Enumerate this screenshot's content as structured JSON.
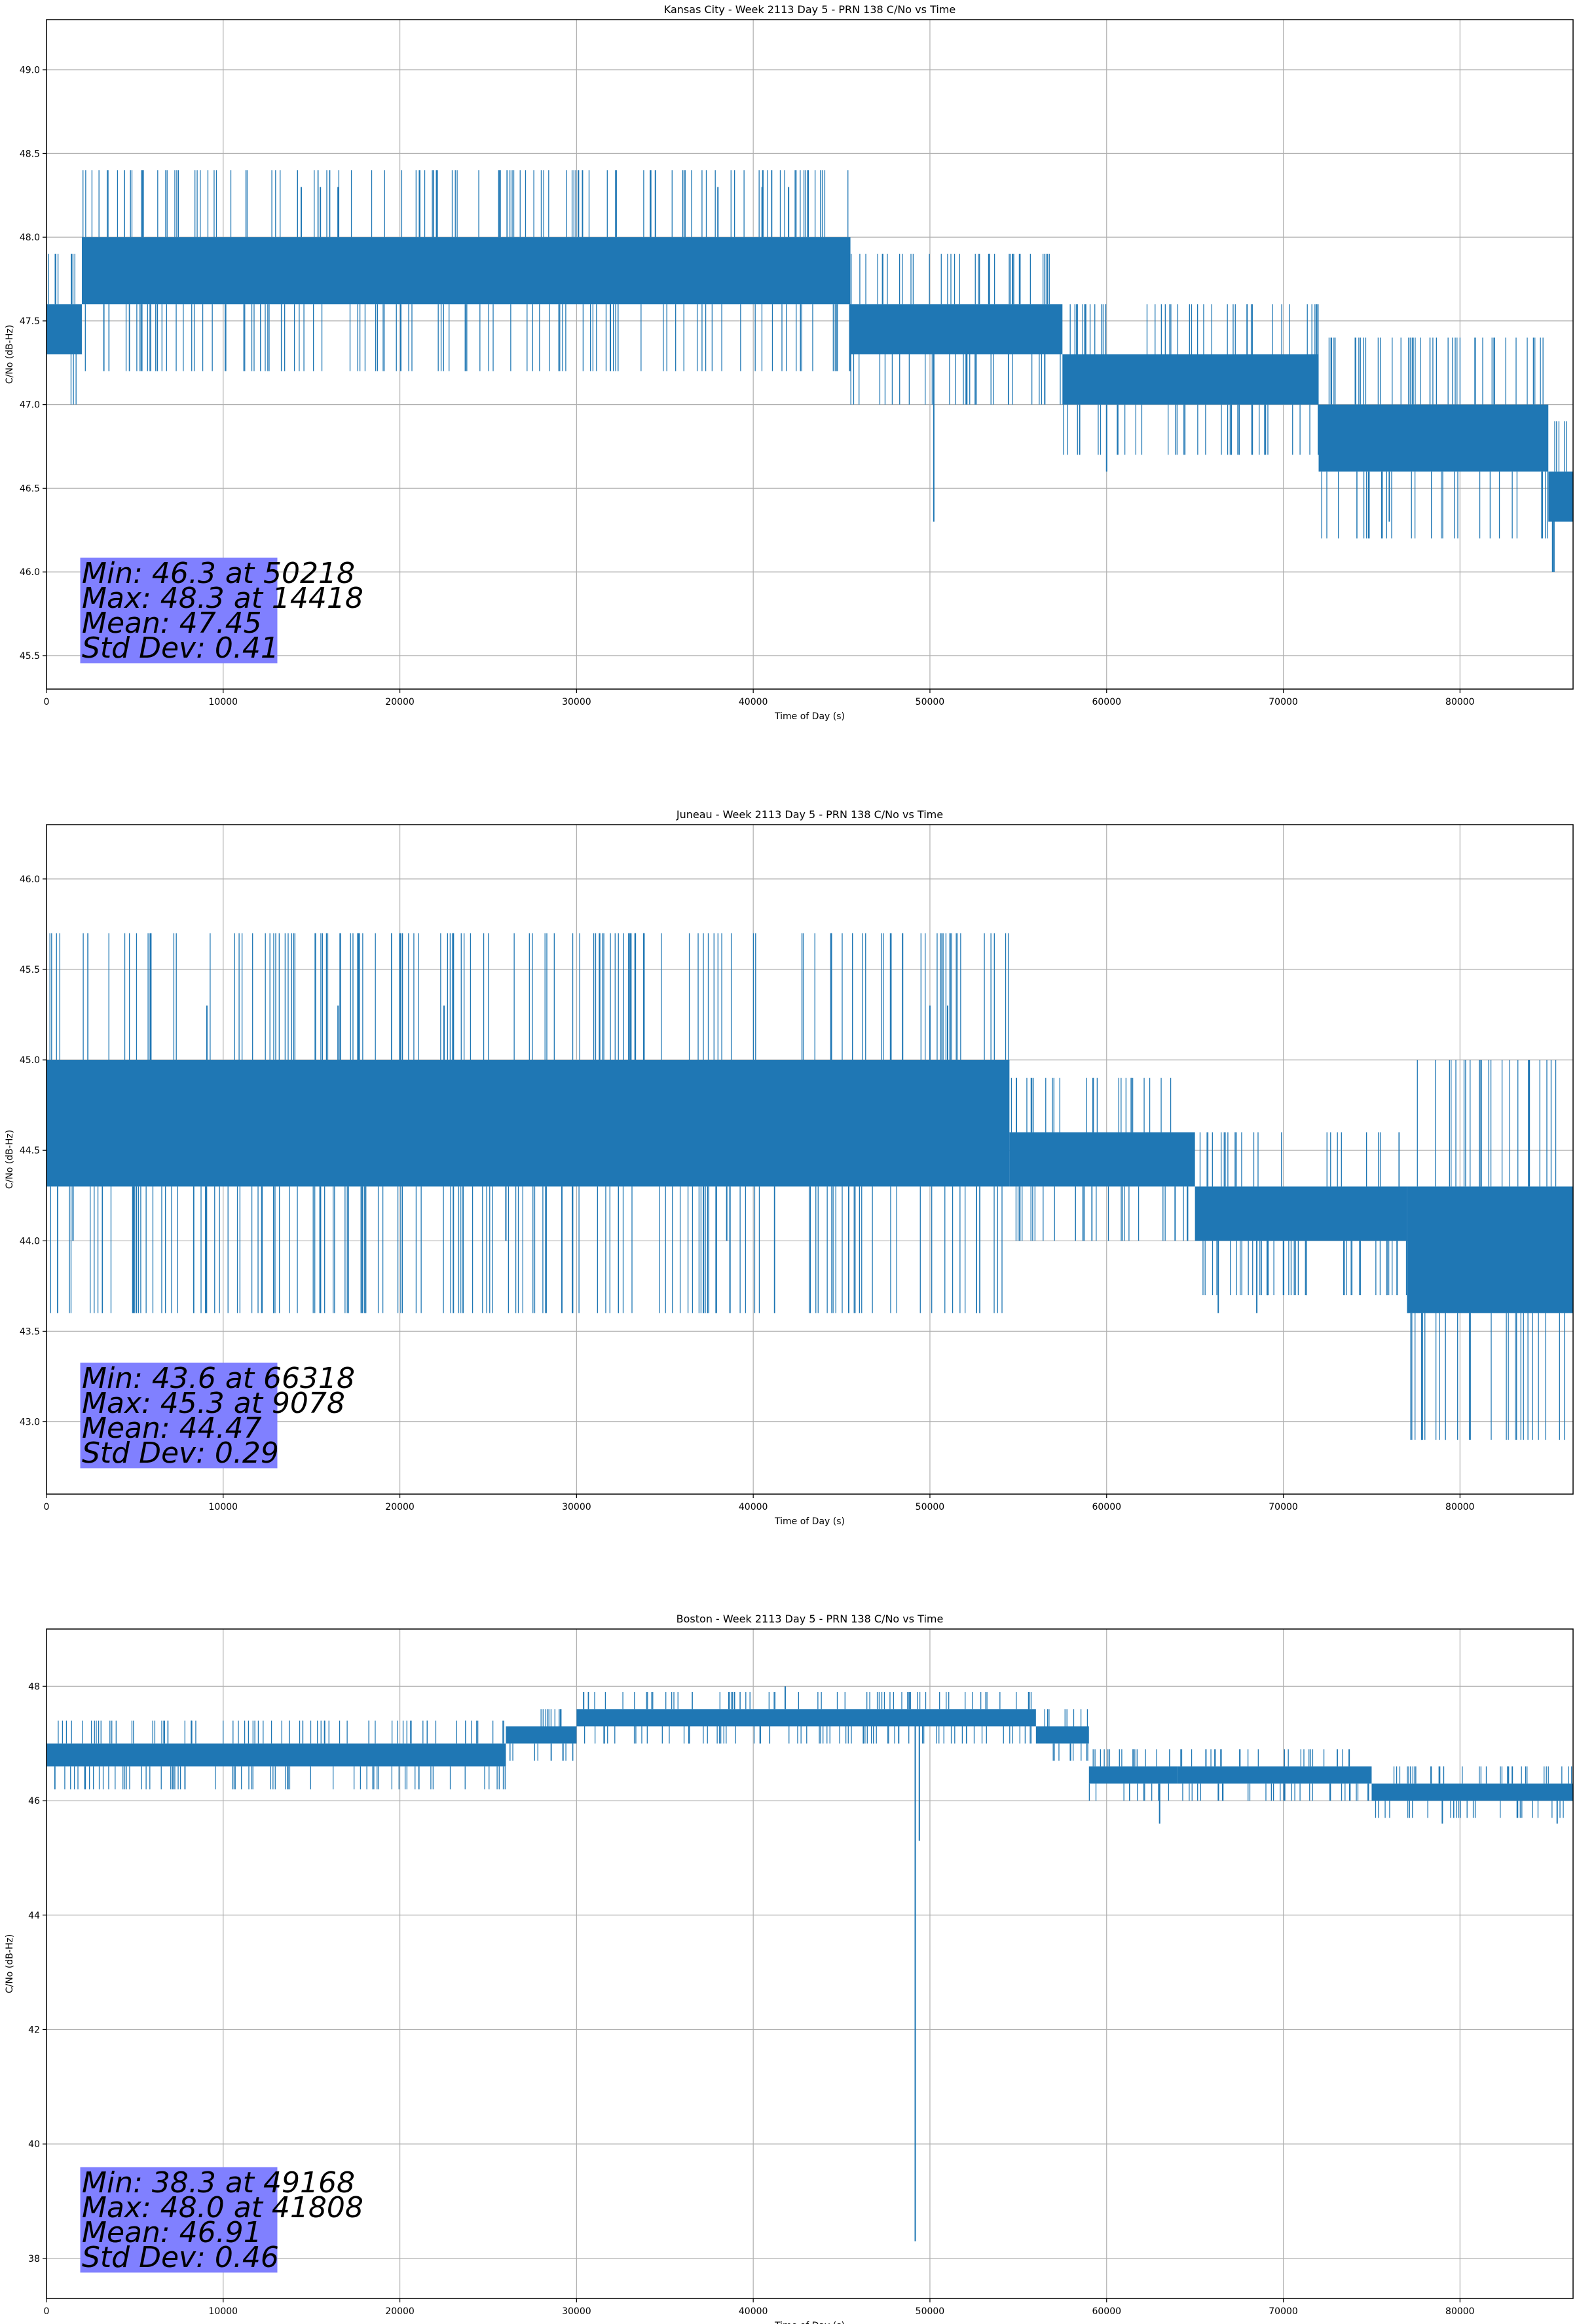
{
  "colors": {
    "series": "#1f77b4",
    "stats_box": "#8080ff",
    "grid": "#b0b0b0",
    "axes": "#000000",
    "background": "#ffffff"
  },
  "chart_data": [
    {
      "type": "line",
      "title": "Kansas City - Week 2113 Day 5 - PRN 138 C/No vs Time",
      "xlabel": "Time of Day (s)",
      "ylabel": "C/No (dB-Hz)",
      "xlim": [
        0,
        86400
      ],
      "ylim": [
        45.3,
        49.3
      ],
      "xticks": [
        0,
        10000,
        20000,
        30000,
        40000,
        50000,
        60000,
        70000,
        80000
      ],
      "yticks": [
        45.5,
        46.0,
        46.5,
        47.0,
        47.5,
        48.0,
        48.5,
        49.0
      ],
      "ytick_decimals": 1,
      "grid": true,
      "series": [
        {
          "band_segments": [
            {
              "x0": 0,
              "x1": 2000,
              "lo": 47.3,
              "hi": 47.6
            },
            {
              "x0": 2000,
              "x1": 45500,
              "lo": 47.6,
              "hi": 48.0
            },
            {
              "x0": 45500,
              "x1": 57500,
              "lo": 47.3,
              "hi": 47.6
            },
            {
              "x0": 57500,
              "x1": 72000,
              "lo": 47.0,
              "hi": 47.3
            },
            {
              "x0": 72000,
              "x1": 85000,
              "lo": 46.6,
              "hi": 47.0
            },
            {
              "x0": 85000,
              "x1": 86400,
              "lo": 46.3,
              "hi": 46.6
            }
          ],
          "spikes": [
            {
              "x": 14418,
              "y": 48.3
            },
            {
              "x": 15500,
              "y": 48.3
            },
            {
              "x": 16500,
              "y": 48.3
            },
            {
              "x": 38000,
              "y": 48.3
            },
            {
              "x": 40500,
              "y": 48.3
            },
            {
              "x": 42000,
              "y": 48.3
            },
            {
              "x": 50218,
              "y": 46.3
            },
            {
              "x": 56500,
              "y": 47.0
            },
            {
              "x": 60000,
              "y": 46.6
            },
            {
              "x": 76000,
              "y": 46.3
            }
          ]
        }
      ],
      "stats": {
        "lines": [
          "Min: 46.3 at 50218",
          "Max: 48.3 at 14418",
          "Mean: 47.45",
          "Std Dev: 0.41"
        ]
      }
    },
    {
      "type": "line",
      "title": "Juneau - Week 2113 Day 5 - PRN 138 C/No vs Time",
      "xlabel": "Time of Day (s)",
      "ylabel": "C/No (dB-Hz)",
      "xlim": [
        0,
        86400
      ],
      "ylim": [
        42.6,
        46.3
      ],
      "xticks": [
        0,
        10000,
        20000,
        30000,
        40000,
        50000,
        60000,
        70000,
        80000
      ],
      "yticks": [
        43.0,
        43.5,
        44.0,
        44.5,
        45.0,
        45.5,
        46.0
      ],
      "ytick_decimals": 1,
      "grid": true,
      "series": [
        {
          "band_segments": [
            {
              "x0": 0,
              "x1": 54500,
              "lo": 44.3,
              "hi": 45.0
            },
            {
              "x0": 54500,
              "x1": 65000,
              "lo": 44.3,
              "hi": 44.6
            },
            {
              "x0": 65000,
              "x1": 77000,
              "lo": 44.0,
              "hi": 44.3
            },
            {
              "x0": 77000,
              "x1": 86400,
              "lo": 43.6,
              "hi": 44.3
            }
          ],
          "spikes": [
            {
              "x": 1500,
              "y": 44.0
            },
            {
              "x": 9078,
              "y": 45.3
            },
            {
              "x": 16500,
              "y": 45.3
            },
            {
              "x": 22500,
              "y": 45.3
            },
            {
              "x": 26000,
              "y": 44.0
            },
            {
              "x": 38500,
              "y": 44.0
            },
            {
              "x": 50000,
              "y": 45.3
            },
            {
              "x": 51000,
              "y": 45.3
            },
            {
              "x": 66318,
              "y": 43.6
            },
            {
              "x": 68500,
              "y": 43.6
            }
          ]
        }
      ],
      "stats": {
        "lines": [
          "Min: 43.6 at 66318",
          "Max: 45.3 at 9078",
          "Mean: 44.47",
          "Std Dev: 0.29"
        ]
      }
    },
    {
      "type": "line",
      "title": "Boston - Week 2113 Day 5 - PRN 138 C/No vs Time",
      "xlabel": "Time of Day (s)",
      "ylabel": "C/No (dB-Hz)",
      "xlim": [
        0,
        86400
      ],
      "ylim": [
        37.3,
        49.0
      ],
      "xticks": [
        0,
        10000,
        20000,
        30000,
        40000,
        50000,
        60000,
        70000,
        80000
      ],
      "yticks": [
        38,
        40,
        42,
        44,
        46,
        48
      ],
      "ytick_decimals": 0,
      "grid": true,
      "series": [
        {
          "band_segments": [
            {
              "x0": 0,
              "x1": 26000,
              "lo": 46.6,
              "hi": 47.0
            },
            {
              "x0": 26000,
              "x1": 30000,
              "lo": 47.0,
              "hi": 47.3
            },
            {
              "x0": 30000,
              "x1": 56000,
              "lo": 47.3,
              "hi": 47.6
            },
            {
              "x0": 56000,
              "x1": 59000,
              "lo": 47.0,
              "hi": 47.3
            },
            {
              "x0": 59000,
              "x1": 64000,
              "lo": 46.3,
              "hi": 46.6
            },
            {
              "x0": 64000,
              "x1": 75000,
              "lo": 46.3,
              "hi": 46.6
            },
            {
              "x0": 75000,
              "x1": 86400,
              "lo": 46.0,
              "hi": 46.3
            }
          ],
          "spikes": [
            {
              "x": 41808,
              "y": 48.0
            },
            {
              "x": 49168,
              "y": 38.3
            },
            {
              "x": 49400,
              "y": 45.3
            },
            {
              "x": 63000,
              "y": 45.6
            },
            {
              "x": 79000,
              "y": 45.6
            },
            {
              "x": 85500,
              "y": 45.6
            }
          ]
        }
      ],
      "stats": {
        "lines": [
          "Min: 38.3 at 49168",
          "Max: 48.0 at 41808",
          "Mean: 46.91",
          "Std Dev: 0.46"
        ]
      }
    }
  ]
}
